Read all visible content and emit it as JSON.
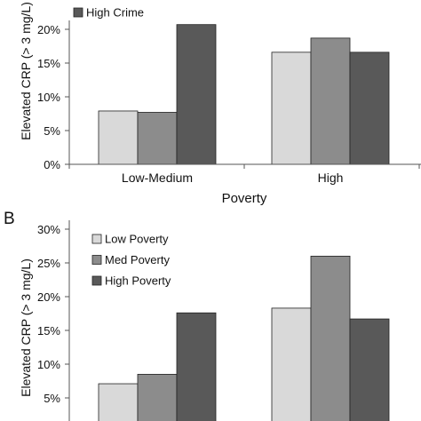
{
  "chart_data": [
    {
      "type": "bar",
      "panel_label": "",
      "title": "",
      "xlabel": "Poverty",
      "ylabel": "Elevated CRP (> 3 mg/L)",
      "ylim": [
        0,
        25
      ],
      "y_ticks": [
        "0%",
        "5%",
        "10%",
        "15%",
        "20%"
      ],
      "categories": [
        "Low-Medium",
        "High"
      ],
      "series": [
        {
          "name": "",
          "values": [
            7.9,
            16.6
          ],
          "color": "#d9d9d9"
        },
        {
          "name": "",
          "values": [
            7.7,
            18.7
          ],
          "color": "#8c8c8c"
        },
        {
          "name": "High Crime",
          "values": [
            20.7,
            16.6
          ],
          "color": "#595959"
        }
      ],
      "legend_position": "top-left",
      "grid": false
    },
    {
      "type": "bar",
      "panel_label": "B",
      "title": "",
      "xlabel": "",
      "ylabel": "Elevated CRP (> 3 mg/L)",
      "ylim": [
        0,
        30
      ],
      "y_ticks": [
        "5%",
        "10%",
        "15%",
        "20%",
        "25%",
        "30%"
      ],
      "categories": [
        "",
        ""
      ],
      "series": [
        {
          "name": "Low Poverty",
          "values": [
            7.1,
            18.3
          ],
          "color": "#d9d9d9"
        },
        {
          "name": "Med Poverty",
          "values": [
            8.5,
            26.0
          ],
          "color": "#8c8c8c"
        },
        {
          "name": "High Poverty",
          "values": [
            17.6,
            16.7
          ],
          "color": "#595959"
        }
      ],
      "legend_position": "top-left",
      "grid": false
    }
  ]
}
